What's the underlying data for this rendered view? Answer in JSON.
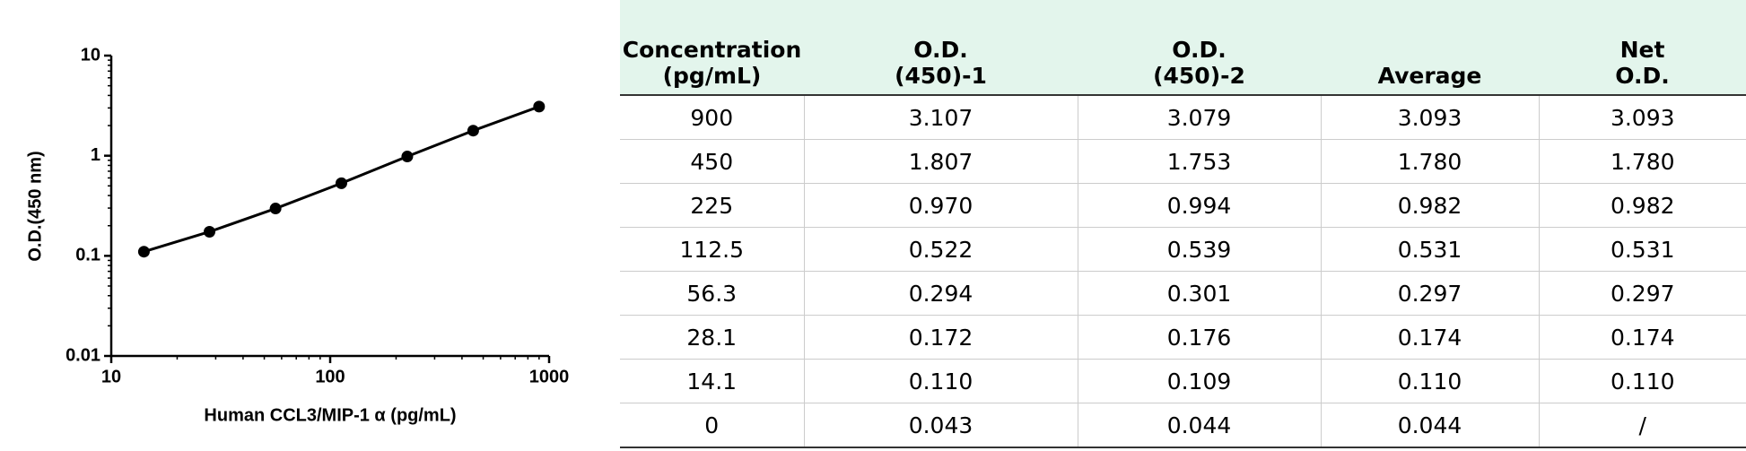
{
  "chart_data": {
    "type": "line",
    "xlabel": "Human CCL3/MIP-1 α (pg/mL)",
    "ylabel": "O.D.(450 nm)",
    "x": [
      14.1,
      28.1,
      56.3,
      112.5,
      225,
      450,
      900
    ],
    "series": [
      {
        "color": "#000000",
        "values": [
          0.11,
          0.174,
          0.297,
          0.531,
          0.982,
          1.78,
          3.093
        ]
      }
    ],
    "xscale": "log",
    "yscale": "log",
    "xlim": [
      10,
      1000
    ],
    "xticks": [
      10,
      100,
      1000
    ],
    "ylim": [
      0.01,
      10
    ],
    "yticks": [
      0.01,
      0.1,
      1,
      10
    ]
  },
  "table": {
    "header": [
      "Concentration (pg/mL)",
      "O.D.(450)-1",
      "O.D.(450)-2",
      "Average",
      "Net O.D."
    ],
    "rows": [
      [
        "900",
        "3.107",
        "3.079",
        "3.093",
        "3.093"
      ],
      [
        "450",
        "1.807",
        "1.753",
        "1.780",
        "1.780"
      ],
      [
        "225",
        "0.970",
        "0.994",
        "0.982",
        "0.982"
      ],
      [
        "112.5",
        "0.522",
        "0.539",
        "0.531",
        "0.531"
      ],
      [
        "56.3",
        "0.294",
        "0.301",
        "0.297",
        "0.297"
      ],
      [
        "28.1",
        "0.172",
        "0.176",
        "0.174",
        "0.174"
      ],
      [
        "14.1",
        "0.110",
        "0.109",
        "0.110",
        "0.110"
      ],
      [
        "0",
        "0.043",
        "0.044",
        "0.044",
        "/"
      ]
    ]
  }
}
